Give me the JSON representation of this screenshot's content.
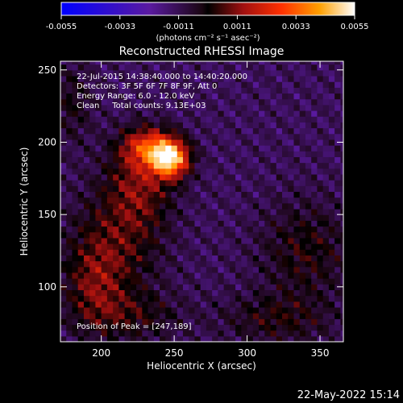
{
  "chart_data": {
    "type": "heatmap",
    "title": "Reconstructed RHESSI Image",
    "xlabel": "Heliocentric X (arcsec)",
    "ylabel": "Heliocentric Y (arcsec)",
    "xlim": [
      172,
      366
    ],
    "ylim": [
      62,
      256
    ],
    "x_ticks": [
      200,
      250,
      300,
      350
    ],
    "y_ticks": [
      100,
      150,
      200,
      250
    ],
    "colorbar": {
      "min": -0.0055,
      "max": 0.0055,
      "ticks": [
        "-0.0055",
        "-0.0033",
        "-0.0011",
        "0.0011",
        "0.0033",
        "0.0055"
      ],
      "label": "(photons cm⁻² s⁻¹ asec⁻²)"
    },
    "annotations": [
      "22-Jul-2015 14:38:40.000 to 14:40:20.000",
      "Detectors: 3F 5F 6F 7F 8F 9F, Att 0",
      "Energy Range: 6.0 - 12.0 keV",
      "Clean     Total counts: 9.13E+03"
    ],
    "peak_label": "Position of Peak = [247,189]",
    "peak": [
      247,
      189
    ],
    "sources": [
      {
        "x": 247,
        "y": 189,
        "amp": 0.0058,
        "sx": 9,
        "sy": 9
      },
      {
        "x": 232,
        "y": 197,
        "amp": 0.003,
        "sx": 12,
        "sy": 9
      },
      {
        "x": 226,
        "y": 172,
        "amp": 0.002,
        "sx": 16,
        "sy": 22
      },
      {
        "x": 208,
        "y": 128,
        "amp": 0.0016,
        "sx": 22,
        "sy": 26
      },
      {
        "x": 195,
        "y": 100,
        "amp": 0.0014,
        "sx": 14,
        "sy": 20
      },
      {
        "x": 220,
        "y": 80,
        "amp": 0.0012,
        "sx": 24,
        "sy": 12
      },
      {
        "x": 340,
        "y": 125,
        "amp": 0.0013,
        "sx": 22,
        "sy": 24
      },
      {
        "x": 320,
        "y": 78,
        "amp": 0.0012,
        "sx": 26,
        "sy": 12
      },
      {
        "x": 180,
        "y": 228,
        "amp": 0.001,
        "sx": 10,
        "sy": 20
      }
    ],
    "background": -0.0012
  },
  "footer": {
    "timestamp": "22-May-2022 15:14"
  }
}
